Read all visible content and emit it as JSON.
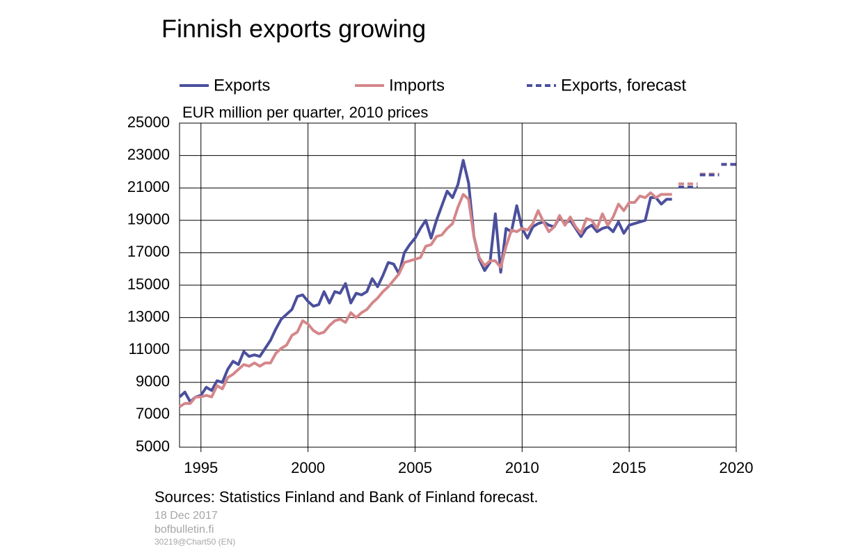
{
  "chart_data": {
    "type": "line",
    "title": "Finnish exports growing",
    "y_axis_label": "EUR million per quarter, 2010 prices",
    "source": "Sources: Statistics Finland and Bank of Finland forecast.",
    "date": "18 Dec 2017",
    "website": "bofbulletin.fi",
    "code": "30219@Chart50  (EN)",
    "xlim": [
      1994,
      2020
    ],
    "xticks": [
      1995,
      2000,
      2005,
      2010,
      2015,
      2020
    ],
    "ylim": [
      5000,
      25000
    ],
    "yticks": [
      5000,
      7000,
      9000,
      11000,
      13000,
      15000,
      17000,
      19000,
      21000,
      23000,
      25000
    ],
    "grid": true,
    "x": [
      1994,
      1994.25,
      1994.5,
      1994.75,
      1995,
      1995.25,
      1995.5,
      1995.75,
      1996,
      1996.25,
      1996.5,
      1996.75,
      1997,
      1997.25,
      1997.5,
      1997.75,
      1998,
      1998.25,
      1998.5,
      1998.75,
      1999,
      1999.25,
      1999.5,
      1999.75,
      2000,
      2000.25,
      2000.5,
      2000.75,
      2001,
      2001.25,
      2001.5,
      2001.75,
      2002,
      2002.25,
      2002.5,
      2002.75,
      2003,
      2003.25,
      2003.5,
      2003.75,
      2004,
      2004.25,
      2004.5,
      2004.75,
      2005,
      2005.25,
      2005.5,
      2005.75,
      2006,
      2006.25,
      2006.5,
      2006.75,
      2007,
      2007.25,
      2007.5,
      2007.75,
      2008,
      2008.25,
      2008.5,
      2008.75,
      2009,
      2009.25,
      2009.5,
      2009.75,
      2010,
      2010.25,
      2010.5,
      2010.75,
      2011,
      2011.25,
      2011.5,
      2011.75,
      2012,
      2012.25,
      2012.5,
      2012.75,
      2013,
      2013.25,
      2013.5,
      2013.75,
      2014,
      2014.25,
      2014.5,
      2014.75,
      2015,
      2015.25,
      2015.5,
      2015.75,
      2016,
      2016.25,
      2016.5,
      2016.75,
      2017
    ],
    "series": [
      {
        "name": "Exports",
        "color": "#4b4f9c",
        "dashed": false,
        "in_legend": true,
        "values": [
          8100,
          8400,
          7800,
          8100,
          8200,
          8700,
          8500,
          9100,
          9000,
          9800,
          10300,
          10100,
          10900,
          10600,
          10700,
          10600,
          11100,
          11600,
          12300,
          12900,
          13200,
          13500,
          14300,
          14400,
          14000,
          13700,
          13800,
          14600,
          13900,
          14600,
          14500,
          15100,
          13900,
          14500,
          14400,
          14600,
          15400,
          14900,
          15600,
          16400,
          16300,
          15700,
          17000,
          17500,
          17900,
          18500,
          19000,
          17900,
          19000,
          19900,
          20800,
          20400,
          21200,
          22700,
          21300,
          18000,
          16600,
          15900,
          16400,
          19400,
          15800,
          18500,
          18300,
          19900,
          18500,
          17900,
          18600,
          18800,
          18900,
          18700,
          18600,
          19200,
          18800,
          19000,
          18500,
          18000,
          18500,
          18700,
          18300,
          18500,
          18600,
          18300,
          18900,
          18200,
          18700,
          18800,
          18900,
          19000,
          20400,
          20400,
          20000,
          20300,
          20300
        ]
      },
      {
        "name": "Imports",
        "color": "#d4878a",
        "dashed": false,
        "in_legend": true,
        "values": [
          7500,
          7700,
          7700,
          8100,
          8100,
          8200,
          8100,
          8800,
          8600,
          9300,
          9500,
          9800,
          10100,
          10000,
          10200,
          10000,
          10200,
          10200,
          10800,
          11100,
          11300,
          11900,
          12100,
          12800,
          12600,
          12200,
          12000,
          12100,
          12500,
          12800,
          12900,
          12700,
          13300,
          13000,
          13300,
          13500,
          13900,
          14200,
          14600,
          14900,
          15300,
          15700,
          16400,
          16500,
          16600,
          16700,
          17400,
          17500,
          18000,
          18100,
          18500,
          18800,
          19800,
          20600,
          20300,
          18000,
          16700,
          16200,
          16500,
          16500,
          16100,
          17400,
          18400,
          18300,
          18500,
          18400,
          18800,
          19600,
          18900,
          18300,
          18600,
          19300,
          18700,
          19200,
          18600,
          18200,
          19100,
          19000,
          18500,
          19400,
          18700,
          19200,
          20000,
          19600,
          20100,
          20100,
          20500,
          20400,
          20700,
          20400,
          20600,
          20600,
          20600
        ]
      },
      {
        "color": "#d4878a",
        "dashed": true,
        "in_legend": false,
        "x": [
          2017.3,
          2018.2,
          2018.25,
          2018.3,
          2019.2,
          2019.25,
          2019.3,
          2020
        ],
        "values": [
          21250,
          21250,
          null,
          21850,
          21850,
          null,
          22450,
          22450
        ]
      },
      {
        "name": "Exports, forecast",
        "color": "#4b4f9c",
        "dashed": true,
        "in_legend": true,
        "x": [
          2017.3,
          2018.2,
          2018.25,
          2018.3,
          2019.2,
          2019.25,
          2019.3,
          2020
        ],
        "values": [
          21050,
          21050,
          null,
          21800,
          21800,
          null,
          22450,
          22450
        ]
      }
    ]
  }
}
